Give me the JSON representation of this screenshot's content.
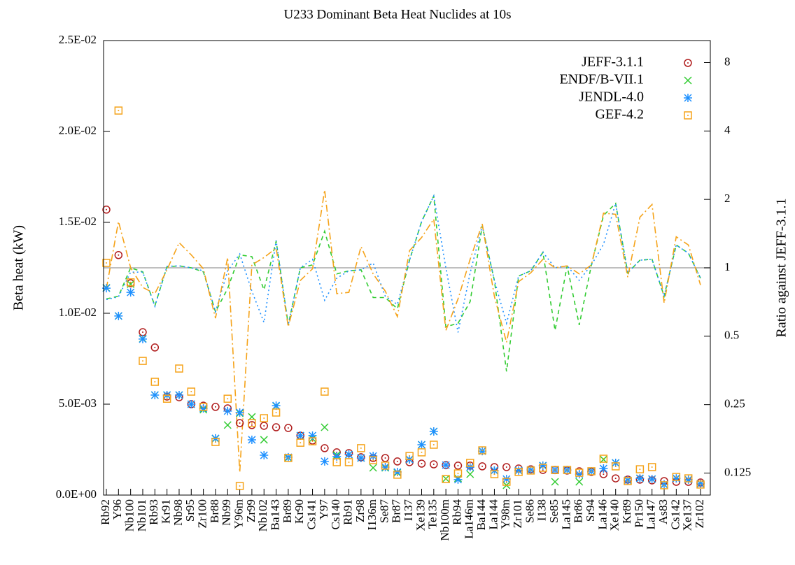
{
  "chart_data": {
    "type": "scatter",
    "title": "U233 Dominant Beta Heat Nuclides at 10s",
    "y_label": "Beta heat (kW)",
    "y2_label": "Ratio against JEFF-3.1.1",
    "categories": [
      "Rb92",
      "Y96",
      "Nb100",
      "Nb101",
      "Rb93",
      "Kr91",
      "Nb98",
      "Sr95",
      "Zr100",
      "Br88",
      "Nb99",
      "Y96m",
      "Zr99",
      "Nb102",
      "Ba143",
      "Br89",
      "Kr90",
      "Cs141",
      "Y97",
      "Cs140",
      "Rb91",
      "Zr98",
      "I136m",
      "Se87",
      "Br87",
      "I137",
      "Xe139",
      "Te135",
      "Nb100m",
      "Rb94",
      "La146m",
      "Ba144",
      "La144",
      "Y98m",
      "Zr101",
      "Se86",
      "I138",
      "Se85",
      "La145",
      "Br86",
      "Sr94",
      "La146",
      "Xe140",
      "Kr89",
      "Pr150",
      "La147",
      "As83",
      "Cs142",
      "Xe137",
      "Zr102"
    ],
    "ylim": [
      0,
      0.025
    ],
    "yticks": [
      {
        "value": 0,
        "label": "0.0E+00"
      },
      {
        "value": 0.005,
        "label": "5.0E-03"
      },
      {
        "value": 0.01,
        "label": "1.0E-02"
      },
      {
        "value": 0.015,
        "label": "1.5E-02"
      },
      {
        "value": 0.02,
        "label": "2.0E-02"
      },
      {
        "value": 0.025,
        "label": "2.5E-02"
      }
    ],
    "y2lim": [
      0.1,
      10
    ],
    "y2ticks": [
      0.125,
      0.25,
      0.5,
      1,
      2,
      4,
      8
    ],
    "y2_log": true,
    "y2_reference": 1,
    "legend": "top-right",
    "series": [
      {
        "name": "JEFF-3.1.1",
        "color": "#b01c1c",
        "marker": "circle",
        "values": [
          0.0157,
          0.0132,
          0.01165,
          0.00896,
          0.00812,
          0.00542,
          0.00538,
          0.005,
          0.00492,
          0.00485,
          0.00477,
          0.00396,
          0.00385,
          0.00381,
          0.00373,
          0.00369,
          0.00327,
          0.003,
          0.00258,
          0.00235,
          0.00231,
          0.00208,
          0.00204,
          0.00204,
          0.00185,
          0.00181,
          0.00173,
          0.00169,
          0.00165,
          0.00162,
          0.00162,
          0.00158,
          0.00154,
          0.00154,
          0.00146,
          0.00142,
          0.00138,
          0.00138,
          0.00135,
          0.00131,
          0.00127,
          0.00115,
          0.00092,
          0.00085,
          0.00085,
          0.00081,
          0.00077,
          0.00073,
          0.00073,
          0.00069
        ]
      },
      {
        "name": "ENDF/B-VII.1",
        "color": "#33cc33",
        "marker": "x",
        "dash": "6,5",
        "values": [
          0.0114,
          0.00985,
          0.0116,
          0.0086,
          0.0055,
          0.0055,
          0.0055,
          0.005,
          0.0047,
          0.0031,
          0.00385,
          0.0045,
          0.0043,
          0.00304,
          0.0049,
          0.00205,
          0.00327,
          0.0031,
          0.00373,
          0.0022,
          0.00223,
          0.00204,
          0.0015,
          0.0015,
          0.00123,
          0.00196,
          0.00277,
          0.0035,
          0.0009,
          0.00092,
          0.00115,
          0.00242,
          0.00135,
          0.00054,
          0.00135,
          0.00138,
          0.00162,
          0.00073,
          0.00138,
          0.00073,
          0.00131,
          0.00196,
          0.00177,
          0.00081,
          0.00092,
          0.00088,
          0.00058,
          0.00092,
          0.00085,
          0.00062
        ],
        "ratios": [
          0.73,
          0.75,
          1.0,
          0.96,
          0.68,
          1.01,
          1.02,
          1.0,
          0.96,
          0.64,
          0.81,
          1.14,
          1.12,
          0.8,
          1.31,
          0.56,
          1.0,
          1.03,
          1.45,
          0.94,
          0.97,
          0.98,
          0.74,
          0.74,
          0.66,
          1.08,
          1.6,
          2.07,
          0.55,
          0.57,
          0.71,
          1.53,
          0.88,
          0.35,
          0.92,
          0.97,
          1.17,
          0.53,
          1.02,
          0.56,
          1.03,
          1.7,
          1.92,
          0.95,
          1.08,
          1.09,
          0.75,
          1.26,
          1.16,
          0.9
        ]
      },
      {
        "name": "JENDL-4.0",
        "color": "#1e90ff",
        "marker": "asterisk",
        "dash": "2,4",
        "values": [
          0.01138,
          0.00985,
          0.01115,
          0.00858,
          0.0055,
          0.0055,
          0.0055,
          0.005,
          0.00477,
          0.00312,
          0.00462,
          0.00454,
          0.00304,
          0.00219,
          0.00492,
          0.00208,
          0.00327,
          0.00327,
          0.00185,
          0.00212,
          0.00223,
          0.00204,
          0.00215,
          0.00154,
          0.00127,
          0.00196,
          0.00277,
          0.0035,
          0.00165,
          0.00085,
          0.00154,
          0.00242,
          0.00135,
          0.00088,
          0.00135,
          0.00138,
          0.00162,
          0.00138,
          0.00138,
          0.00115,
          0.00131,
          0.00146,
          0.00177,
          0.00081,
          0.00092,
          0.00088,
          0.00058,
          0.00092,
          0.00085,
          0.00062
        ],
        "ratios": [
          0.725,
          0.746,
          0.957,
          0.958,
          0.677,
          1.015,
          1.02,
          1.0,
          0.97,
          0.64,
          0.97,
          1.15,
          0.79,
          0.575,
          1.32,
          0.56,
          1.0,
          1.09,
          0.72,
          0.9,
          0.97,
          0.98,
          1.05,
          0.75,
          0.69,
          1.08,
          1.6,
          2.07,
          1.0,
          0.52,
          0.95,
          1.53,
          0.88,
          0.57,
          0.92,
          0.97,
          1.17,
          1.0,
          1.02,
          0.88,
          1.03,
          1.27,
          1.92,
          0.95,
          1.08,
          1.09,
          0.75,
          1.26,
          1.16,
          0.9
        ]
      },
      {
        "name": "GEF-4.2",
        "color": "#f5a31a",
        "marker": "square",
        "dash": "10,4,2,4",
        "values": [
          0.01277,
          0.02115,
          0.0117,
          0.00738,
          0.00623,
          0.0053,
          0.00696,
          0.00569,
          0.00485,
          0.00292,
          0.0053,
          0.0005,
          0.00396,
          0.00423,
          0.00454,
          0.00204,
          0.00288,
          0.00296,
          0.00569,
          0.00181,
          0.00181,
          0.00258,
          0.00192,
          0.00162,
          0.00112,
          0.00215,
          0.00235,
          0.00277,
          0.00088,
          0.00119,
          0.00177,
          0.00246,
          0.00115,
          0.00073,
          0.00127,
          0.00135,
          0.0015,
          0.00138,
          0.00138,
          0.00123,
          0.00131,
          0.002,
          0.00158,
          0.00077,
          0.00142,
          0.00154,
          0.00054,
          0.001,
          0.00092,
          0.00058
        ],
        "ratios": [
          0.81,
          1.6,
          1.0,
          0.82,
          0.77,
          0.98,
          1.29,
          1.14,
          0.99,
          0.6,
          1.11,
          0.126,
          1.03,
          1.11,
          1.22,
          0.55,
          0.88,
          0.99,
          2.2,
          0.77,
          0.78,
          1.24,
          0.94,
          0.79,
          0.61,
          1.19,
          1.36,
          1.64,
          0.53,
          0.73,
          1.09,
          1.56,
          0.75,
          0.47,
          0.87,
          0.95,
          1.09,
          1.0,
          1.02,
          0.94,
          1.03,
          1.74,
          1.72,
          0.91,
          1.67,
          1.9,
          0.7,
          1.37,
          1.26,
          0.84
        ]
      }
    ]
  }
}
